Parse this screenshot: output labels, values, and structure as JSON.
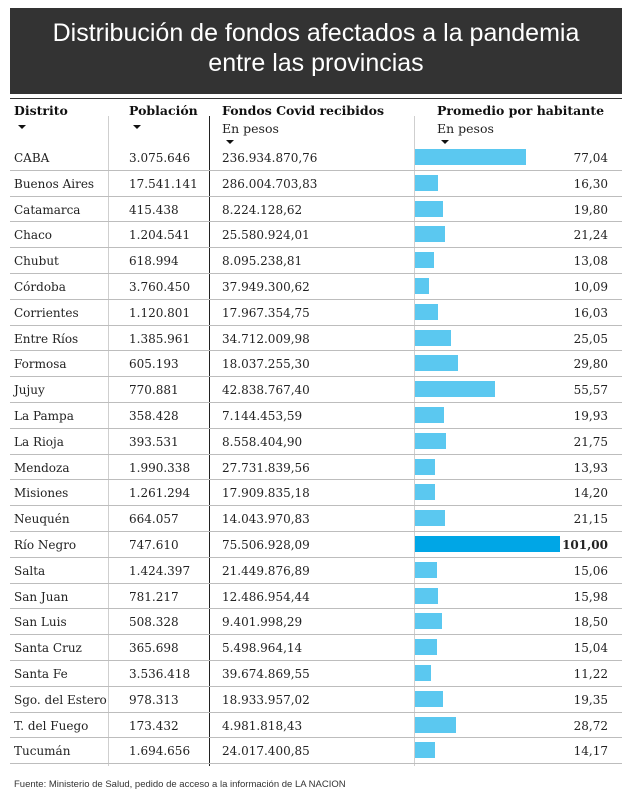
{
  "title": {
    "line1": "Distribución de fondos afectados a la pandemia",
    "line2": "entre las provincias"
  },
  "headers": {
    "distrito": "Distrito",
    "poblacion": "Población",
    "fondos": "Fondos Covid recibidos",
    "fondos_sub": "En pesos",
    "promedio": "Promedio por habitante",
    "promedio_sub": "En pesos"
  },
  "colors": {
    "bar": "#5bc8f0",
    "bar_highlight": "#00a6e6",
    "banner": "#333333"
  },
  "chart_data": {
    "type": "table",
    "columns": [
      "Distrito",
      "Población",
      "Fondos Covid recibidos",
      "Promedio por habitante"
    ],
    "rows": [
      {
        "distrito": "CABA",
        "poblacion": "3.075.646",
        "fondos": "236.934.870,76",
        "promedio": "77,04",
        "value": 77.04
      },
      {
        "distrito": "Buenos Aires",
        "poblacion": "17.541.141",
        "fondos": "286.004.703,83",
        "promedio": "16,30",
        "value": 16.3
      },
      {
        "distrito": "Catamarca",
        "poblacion": "415.438",
        "fondos": "8.224.128,62",
        "promedio": "19,80",
        "value": 19.8
      },
      {
        "distrito": "Chaco",
        "poblacion": "1.204.541",
        "fondos": "25.580.924,01",
        "promedio": "21,24",
        "value": 21.24
      },
      {
        "distrito": "Chubut",
        "poblacion": "618.994",
        "fondos": "8.095.238,81",
        "promedio": "13,08",
        "value": 13.08
      },
      {
        "distrito": "Córdoba",
        "poblacion": "3.760.450",
        "fondos": "37.949.300,62",
        "promedio": "10,09",
        "value": 10.09
      },
      {
        "distrito": "Corrientes",
        "poblacion": "1.120.801",
        "fondos": "17.967.354,75",
        "promedio": "16,03",
        "value": 16.03
      },
      {
        "distrito": "Entre Ríos",
        "poblacion": "1.385.961",
        "fondos": "34.712.009,98",
        "promedio": "25,05",
        "value": 25.05
      },
      {
        "distrito": "Formosa",
        "poblacion": "605.193",
        "fondos": "18.037.255,30",
        "promedio": "29,80",
        "value": 29.8
      },
      {
        "distrito": "Jujuy",
        "poblacion": "770.881",
        "fondos": "42.838.767,40",
        "promedio": "55,57",
        "value": 55.57
      },
      {
        "distrito": "La Pampa",
        "poblacion": "358.428",
        "fondos": "7.144.453,59",
        "promedio": "19,93",
        "value": 19.93
      },
      {
        "distrito": "La Rioja",
        "poblacion": "393.531",
        "fondos": "8.558.404,90",
        "promedio": "21,75",
        "value": 21.75
      },
      {
        "distrito": "Mendoza",
        "poblacion": "1.990.338",
        "fondos": "27.731.839,56",
        "promedio": "13,93",
        "value": 13.93
      },
      {
        "distrito": "Misiones",
        "poblacion": "1.261.294",
        "fondos": "17.909.835,18",
        "promedio": "14,20",
        "value": 14.2
      },
      {
        "distrito": "Neuquén",
        "poblacion": "664.057",
        "fondos": "14.043.970,83",
        "promedio": "21,15",
        "value": 21.15
      },
      {
        "distrito": "Río Negro",
        "poblacion": "747.610",
        "fondos": "75.506.928,09",
        "promedio": "101,00",
        "value": 101.0,
        "highlight": true
      },
      {
        "distrito": "Salta",
        "poblacion": "1.424.397",
        "fondos": "21.449.876,89",
        "promedio": "15,06",
        "value": 15.06
      },
      {
        "distrito": "San Juan",
        "poblacion": "781.217",
        "fondos": "12.486.954,44",
        "promedio": "15,98",
        "value": 15.98
      },
      {
        "distrito": "San Luis",
        "poblacion": "508.328",
        "fondos": "9.401.998,29",
        "promedio": "18,50",
        "value": 18.5
      },
      {
        "distrito": "Santa Cruz",
        "poblacion": "365.698",
        "fondos": "5.498.964,14",
        "promedio": "15,04",
        "value": 15.04
      },
      {
        "distrito": "Santa Fe",
        "poblacion": "3.536.418",
        "fondos": "39.674.869,55",
        "promedio": "11,22",
        "value": 11.22
      },
      {
        "distrito": "Sgo. del Estero",
        "poblacion": "978.313",
        "fondos": "18.933.957,02",
        "promedio": "19,35",
        "value": 19.35
      },
      {
        "distrito": "T. del Fuego",
        "poblacion": "173.432",
        "fondos": "4.981.818,43",
        "promedio": "28,72",
        "value": 28.72
      },
      {
        "distrito": "Tucumán",
        "poblacion": "1.694.656",
        "fondos": "24.017.400,85",
        "promedio": "14,17",
        "value": 14.17
      }
    ],
    "bar_max": 101.0
  },
  "footer": "Fuente: Ministerio de Salud, pedido de acceso a la información de LA NACION"
}
